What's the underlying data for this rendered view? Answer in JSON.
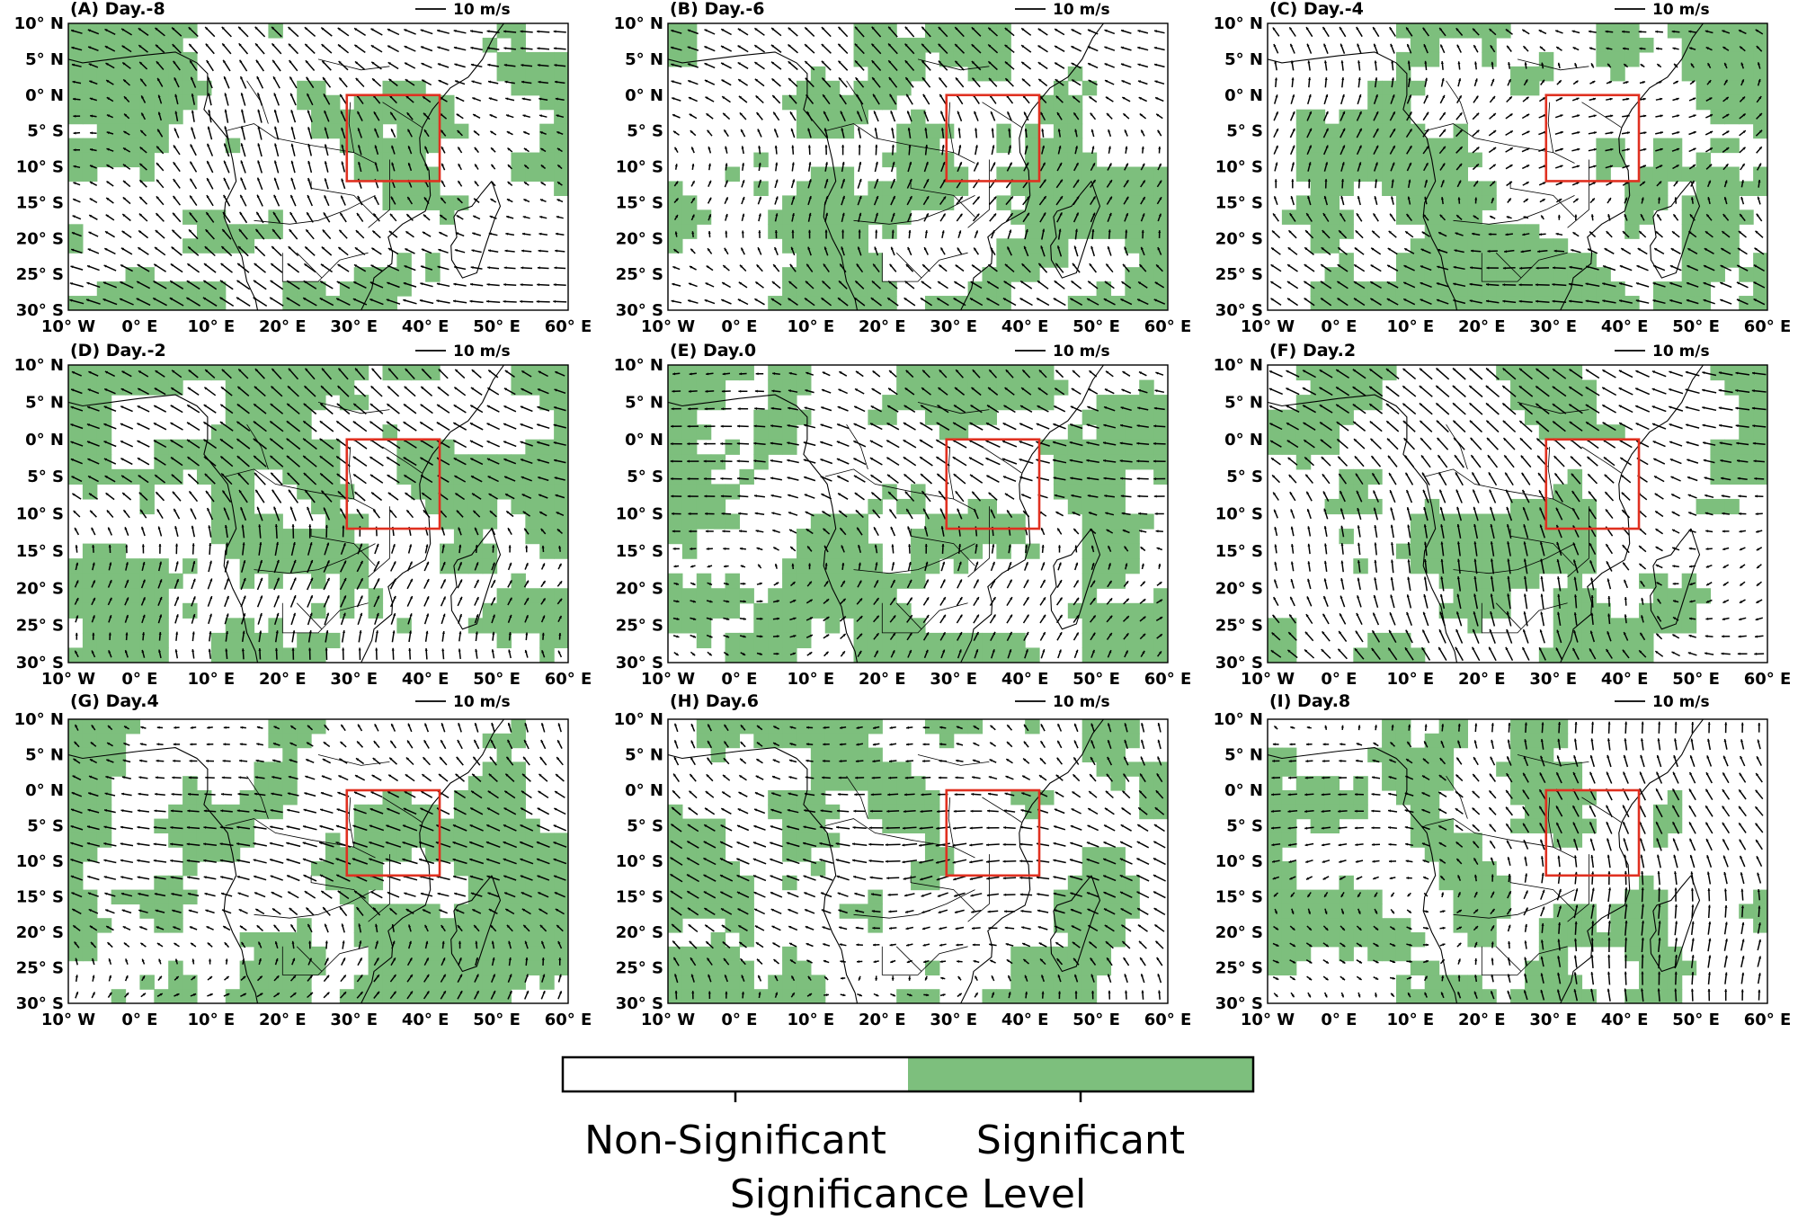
{
  "figure": {
    "panels": [
      {
        "label": "(A) Day.-8",
        "seed": 11
      },
      {
        "label": "(B) Day.-6",
        "seed": 23
      },
      {
        "label": "(C) Day.-4",
        "seed": 37
      },
      {
        "label": "(D) Day.-2",
        "seed": 41
      },
      {
        "label": "(E) Day.0",
        "seed": 53
      },
      {
        "label": "(F) Day.2",
        "seed": 67
      },
      {
        "label": "(G) Day.4",
        "seed": 71
      },
      {
        "label": "(H) Day.6",
        "seed": 83
      },
      {
        "label": "(I) Day.8",
        "seed": 97
      }
    ],
    "reference_vector": "10 m/s",
    "lat_labels": [
      "10° N",
      "5° N",
      "0° N",
      "5° S",
      "10° S",
      "15° S",
      "20° S",
      "25° S",
      "30° S"
    ],
    "lon_labels": [
      "10° W",
      "0° E",
      "10° E",
      "20° E",
      "30° E",
      "40° E",
      "50° E",
      "60° E"
    ],
    "extent": {
      "lon_min": -10,
      "lon_max": 60,
      "lat_min": -30,
      "lat_max": 10
    },
    "region_box": {
      "lon_min": 29,
      "lon_max": 42,
      "lat_min": -12,
      "lat_max": 0
    },
    "colors": {
      "significant": "#7dbf7d",
      "non_significant": "#ffffff",
      "box": "#e03020",
      "vector": "#000000"
    },
    "colorbar": {
      "title": "Significance Level",
      "categories": [
        "Non-Significant",
        "Significant"
      ]
    }
  }
}
